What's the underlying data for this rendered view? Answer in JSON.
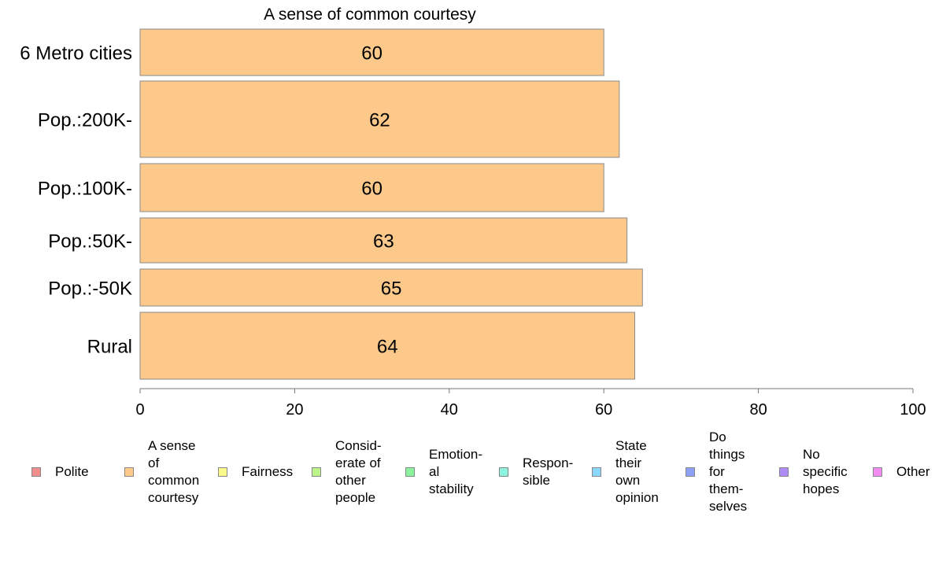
{
  "chart_data": {
    "type": "bar",
    "orientation": "horizontal",
    "title": "A sense of common courtesy",
    "categories": [
      "6 Metro cities",
      "Pop.:200K-",
      "Pop.:100K-",
      "Pop.:50K-",
      "Pop.:-50K",
      "Rural"
    ],
    "series": [
      {
        "name": "A sense of common courtesy",
        "values": [
          60,
          62,
          60,
          63,
          65,
          64
        ],
        "color": "#fdc98a"
      }
    ],
    "data_labels": [
      "60",
      "62",
      "60",
      "63",
      "65",
      "64"
    ],
    "x_ticks": [
      "0",
      "20",
      "40",
      "60",
      "80",
      "100"
    ],
    "xlim": [
      0,
      100
    ],
    "grid": false,
    "legend_position": "bottom",
    "legend": [
      {
        "label": "Polite",
        "color": "#f28e8e"
      },
      {
        "label": "A sense\nof\ncommon\ncourtesy",
        "color": "#fdc98a"
      },
      {
        "label": "Fairness",
        "color": "#fafa8c"
      },
      {
        "label": "Consid-\nerate of\nother\npeople",
        "color": "#bef28a"
      },
      {
        "label": "Emotion-\nal\nstability",
        "color": "#8cf29e"
      },
      {
        "label": "Respon-\nsible",
        "color": "#8cf2dc"
      },
      {
        "label": "State\ntheir\nown\nopinion",
        "color": "#8cd8fa"
      },
      {
        "label": "Do\nthings\nfor\nthem-\nselves",
        "color": "#8ca0f6"
      },
      {
        "label": "No\nspecific\nhopes",
        "color": "#b08cf6"
      },
      {
        "label": "Other",
        "color": "#f28cf2"
      }
    ]
  }
}
